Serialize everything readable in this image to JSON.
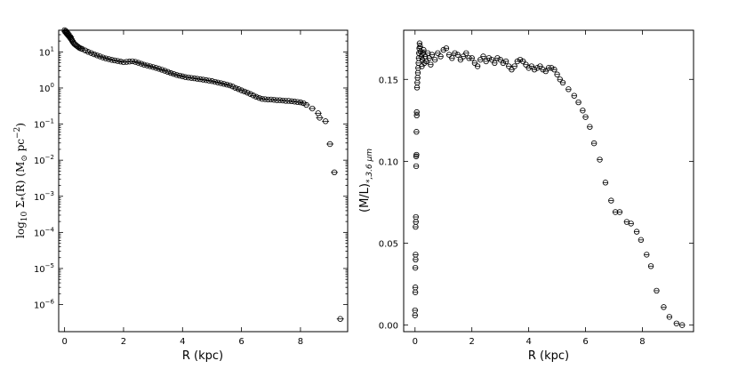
{
  "chart_data": [
    {
      "type": "scatter",
      "xlabel": "R (kpc)",
      "ylabel_parts": {
        "pre": "log",
        "sub1": "10",
        "mid": " Σ",
        "sub2": "*",
        "post": "(R) (M",
        "sun": "⊙",
        "unit": " pc",
        "exp": "−2",
        "end": ")"
      },
      "xlim": [
        -0.2,
        9.6
      ],
      "ylim_log10": [
        -6.75,
        1.6
      ],
      "log_y": true,
      "xticks": [
        0,
        2,
        4,
        6,
        8
      ],
      "yticks_exp": [
        1,
        0,
        -1,
        -2,
        -3,
        -4,
        -5,
        -6
      ],
      "ytick_labels": [
        {
          "base": "10",
          "exp": "1"
        },
        {
          "base": "10",
          "exp": "0"
        },
        {
          "base": "10",
          "exp": "−1"
        },
        {
          "base": "10",
          "exp": "−2"
        },
        {
          "base": "10",
          "exp": "−3"
        },
        {
          "base": "10",
          "exp": "−4"
        },
        {
          "base": "10",
          "exp": "−5"
        },
        {
          "base": "10",
          "exp": "−6"
        }
      ],
      "points": [
        {
          "x": 0.0,
          "y": 40
        },
        {
          "x": 0.02,
          "y": 36
        },
        {
          "x": 0.04,
          "y": 38
        },
        {
          "x": 0.06,
          "y": 33
        },
        {
          "x": 0.08,
          "y": 35
        },
        {
          "x": 0.1,
          "y": 30
        },
        {
          "x": 0.12,
          "y": 32
        },
        {
          "x": 0.14,
          "y": 28
        },
        {
          "x": 0.16,
          "y": 27
        },
        {
          "x": 0.18,
          "y": 25
        },
        {
          "x": 0.2,
          "y": 26
        },
        {
          "x": 0.22,
          "y": 23
        },
        {
          "x": 0.25,
          "y": 21
        },
        {
          "x": 0.28,
          "y": 19
        },
        {
          "x": 0.32,
          "y": 17
        },
        {
          "x": 0.36,
          "y": 16
        },
        {
          "x": 0.4,
          "y": 15
        },
        {
          "x": 0.45,
          "y": 14
        },
        {
          "x": 0.5,
          "y": 13
        },
        {
          "x": 0.55,
          "y": 12.5
        },
        {
          "x": 0.6,
          "y": 12
        },
        {
          "x": 0.7,
          "y": 11
        },
        {
          "x": 0.8,
          "y": 10
        },
        {
          "x": 0.9,
          "y": 9.3
        },
        {
          "x": 1.0,
          "y": 8.6
        },
        {
          "x": 1.1,
          "y": 8.0
        },
        {
          "x": 1.2,
          "y": 7.5
        },
        {
          "x": 1.3,
          "y": 7.0
        },
        {
          "x": 1.4,
          "y": 6.6
        },
        {
          "x": 1.5,
          "y": 6.3
        },
        {
          "x": 1.6,
          "y": 6.0
        },
        {
          "x": 1.7,
          "y": 5.8
        },
        {
          "x": 1.8,
          "y": 5.6
        },
        {
          "x": 1.9,
          "y": 5.4
        },
        {
          "x": 2.0,
          "y": 5.2
        },
        {
          "x": 2.1,
          "y": 5.3
        },
        {
          "x": 2.2,
          "y": 5.4
        },
        {
          "x": 2.3,
          "y": 5.5
        },
        {
          "x": 2.4,
          "y": 5.3
        },
        {
          "x": 2.5,
          "y": 5.0
        },
        {
          "x": 2.6,
          "y": 4.7
        },
        {
          "x": 2.7,
          "y": 4.4
        },
        {
          "x": 2.8,
          "y": 4.2
        },
        {
          "x": 2.9,
          "y": 4.0
        },
        {
          "x": 3.0,
          "y": 3.8
        },
        {
          "x": 3.1,
          "y": 3.6
        },
        {
          "x": 3.2,
          "y": 3.4
        },
        {
          "x": 3.3,
          "y": 3.2
        },
        {
          "x": 3.4,
          "y": 3.0
        },
        {
          "x": 3.5,
          "y": 2.8
        },
        {
          "x": 3.6,
          "y": 2.6
        },
        {
          "x": 3.7,
          "y": 2.45
        },
        {
          "x": 3.8,
          "y": 2.3
        },
        {
          "x": 3.9,
          "y": 2.2
        },
        {
          "x": 4.0,
          "y": 2.1
        },
        {
          "x": 4.1,
          "y": 2.0
        },
        {
          "x": 4.2,
          "y": 1.95
        },
        {
          "x": 4.3,
          "y": 1.9
        },
        {
          "x": 4.4,
          "y": 1.85
        },
        {
          "x": 4.5,
          "y": 1.8
        },
        {
          "x": 4.6,
          "y": 1.75
        },
        {
          "x": 4.7,
          "y": 1.7
        },
        {
          "x": 4.8,
          "y": 1.65
        },
        {
          "x": 4.9,
          "y": 1.6
        },
        {
          "x": 5.0,
          "y": 1.55
        },
        {
          "x": 5.1,
          "y": 1.48
        },
        {
          "x": 5.2,
          "y": 1.42
        },
        {
          "x": 5.3,
          "y": 1.36
        },
        {
          "x": 5.4,
          "y": 1.3
        },
        {
          "x": 5.5,
          "y": 1.24
        },
        {
          "x": 5.6,
          "y": 1.18
        },
        {
          "x": 5.7,
          "y": 1.1
        },
        {
          "x": 5.8,
          "y": 1.0
        },
        {
          "x": 5.9,
          "y": 0.93
        },
        {
          "x": 6.0,
          "y": 0.86
        },
        {
          "x": 6.1,
          "y": 0.8
        },
        {
          "x": 6.2,
          "y": 0.74
        },
        {
          "x": 6.3,
          "y": 0.68
        },
        {
          "x": 6.4,
          "y": 0.62
        },
        {
          "x": 6.5,
          "y": 0.57
        },
        {
          "x": 6.6,
          "y": 0.53
        },
        {
          "x": 6.7,
          "y": 0.5
        },
        {
          "x": 6.8,
          "y": 0.49
        },
        {
          "x": 6.9,
          "y": 0.48
        },
        {
          "x": 7.0,
          "y": 0.48
        },
        {
          "x": 7.1,
          "y": 0.47
        },
        {
          "x": 7.2,
          "y": 0.46
        },
        {
          "x": 7.3,
          "y": 0.46
        },
        {
          "x": 7.4,
          "y": 0.45
        },
        {
          "x": 7.5,
          "y": 0.44
        },
        {
          "x": 7.6,
          "y": 0.44
        },
        {
          "x": 7.7,
          "y": 0.43
        },
        {
          "x": 7.8,
          "y": 0.42
        },
        {
          "x": 7.9,
          "y": 0.41
        },
        {
          "x": 8.0,
          "y": 0.4
        },
        {
          "x": 8.1,
          "y": 0.38
        },
        {
          "x": 8.2,
          "y": 0.34
        },
        {
          "x": 8.4,
          "y": 0.27
        },
        {
          "x": 8.6,
          "y": 0.2
        },
        {
          "x": 8.65,
          "y": 0.15
        },
        {
          "x": 8.85,
          "y": 0.12
        },
        {
          "x": 9.0,
          "y": 0.028
        },
        {
          "x": 9.15,
          "y": 0.0046
        },
        {
          "x": 9.35,
          "y": 4e-07
        }
      ],
      "xerr": 0.12
    },
    {
      "type": "scatter",
      "xlabel": "R (kpc)",
      "ylabel_parts": {
        "pre": "(M/L)",
        "sub": "*,3.6 μm"
      },
      "xlim": [
        -0.4,
        9.8
      ],
      "ylim": [
        -0.004,
        0.18
      ],
      "xticks": [
        0,
        2,
        4,
        6,
        8
      ],
      "yticks": [
        0.0,
        0.05,
        0.1,
        0.15
      ],
      "ytick_labels": [
        "0.00",
        "0.05",
        "0.10",
        "0.15"
      ],
      "points": [
        {
          "x": 0.0,
          "y": 0.006
        },
        {
          "x": 0.0,
          "y": 0.009
        },
        {
          "x": 0.01,
          "y": 0.02
        },
        {
          "x": 0.01,
          "y": 0.023
        },
        {
          "x": 0.01,
          "y": 0.035
        },
        {
          "x": 0.02,
          "y": 0.04
        },
        {
          "x": 0.02,
          "y": 0.043
        },
        {
          "x": 0.02,
          "y": 0.06
        },
        {
          "x": 0.03,
          "y": 0.063
        },
        {
          "x": 0.03,
          "y": 0.066
        },
        {
          "x": 0.04,
          "y": 0.097
        },
        {
          "x": 0.04,
          "y": 0.103
        },
        {
          "x": 0.05,
          "y": 0.104
        },
        {
          "x": 0.05,
          "y": 0.118
        },
        {
          "x": 0.06,
          "y": 0.128
        },
        {
          "x": 0.06,
          "y": 0.13
        },
        {
          "x": 0.07,
          "y": 0.145
        },
        {
          "x": 0.08,
          "y": 0.148
        },
        {
          "x": 0.09,
          "y": 0.151
        },
        {
          "x": 0.1,
          "y": 0.154
        },
        {
          "x": 0.11,
          "y": 0.157
        },
        {
          "x": 0.12,
          "y": 0.16
        },
        {
          "x": 0.13,
          "y": 0.163
        },
        {
          "x": 0.14,
          "y": 0.166
        },
        {
          "x": 0.15,
          "y": 0.169
        },
        {
          "x": 0.16,
          "y": 0.172
        },
        {
          "x": 0.18,
          "y": 0.17
        },
        {
          "x": 0.2,
          "y": 0.167
        },
        {
          "x": 0.22,
          "y": 0.164
        },
        {
          "x": 0.24,
          "y": 0.158
        },
        {
          "x": 0.26,
          "y": 0.162
        },
        {
          "x": 0.28,
          "y": 0.166
        },
        {
          "x": 0.3,
          "y": 0.168
        },
        {
          "x": 0.33,
          "y": 0.16
        },
        {
          "x": 0.36,
          "y": 0.164
        },
        {
          "x": 0.4,
          "y": 0.161
        },
        {
          "x": 0.45,
          "y": 0.166
        },
        {
          "x": 0.5,
          "y": 0.163
        },
        {
          "x": 0.55,
          "y": 0.159
        },
        {
          "x": 0.6,
          "y": 0.165
        },
        {
          "x": 0.7,
          "y": 0.162
        },
        {
          "x": 0.8,
          "y": 0.166
        },
        {
          "x": 0.9,
          "y": 0.164
        },
        {
          "x": 1.0,
          "y": 0.168
        },
        {
          "x": 1.1,
          "y": 0.169
        },
        {
          "x": 1.2,
          "y": 0.165
        },
        {
          "x": 1.3,
          "y": 0.163
        },
        {
          "x": 1.4,
          "y": 0.166
        },
        {
          "x": 1.5,
          "y": 0.165
        },
        {
          "x": 1.6,
          "y": 0.162
        },
        {
          "x": 1.7,
          "y": 0.164
        },
        {
          "x": 1.8,
          "y": 0.166
        },
        {
          "x": 1.9,
          "y": 0.163
        },
        {
          "x": 2.0,
          "y": 0.163
        },
        {
          "x": 2.1,
          "y": 0.16
        },
        {
          "x": 2.2,
          "y": 0.158
        },
        {
          "x": 2.3,
          "y": 0.162
        },
        {
          "x": 2.4,
          "y": 0.164
        },
        {
          "x": 2.5,
          "y": 0.161
        },
        {
          "x": 2.6,
          "y": 0.163
        },
        {
          "x": 2.7,
          "y": 0.162
        },
        {
          "x": 2.8,
          "y": 0.16
        },
        {
          "x": 2.9,
          "y": 0.163
        },
        {
          "x": 3.0,
          "y": 0.162
        },
        {
          "x": 3.1,
          "y": 0.16
        },
        {
          "x": 3.2,
          "y": 0.161
        },
        {
          "x": 3.3,
          "y": 0.158
        },
        {
          "x": 3.4,
          "y": 0.156
        },
        {
          "x": 3.5,
          "y": 0.158
        },
        {
          "x": 3.6,
          "y": 0.161
        },
        {
          "x": 3.7,
          "y": 0.162
        },
        {
          "x": 3.8,
          "y": 0.161
        },
        {
          "x": 3.9,
          "y": 0.159
        },
        {
          "x": 4.0,
          "y": 0.157
        },
        {
          "x": 4.1,
          "y": 0.158
        },
        {
          "x": 4.2,
          "y": 0.156
        },
        {
          "x": 4.3,
          "y": 0.157
        },
        {
          "x": 4.4,
          "y": 0.158
        },
        {
          "x": 4.5,
          "y": 0.156
        },
        {
          "x": 4.6,
          "y": 0.155
        },
        {
          "x": 4.7,
          "y": 0.157
        },
        {
          "x": 4.8,
          "y": 0.157
        },
        {
          "x": 4.9,
          "y": 0.156
        },
        {
          "x": 5.0,
          "y": 0.153
        },
        {
          "x": 5.1,
          "y": 0.15
        },
        {
          "x": 5.2,
          "y": 0.148
        },
        {
          "x": 5.4,
          "y": 0.144
        },
        {
          "x": 5.6,
          "y": 0.14
        },
        {
          "x": 5.75,
          "y": 0.136
        },
        {
          "x": 5.9,
          "y": 0.131
        },
        {
          "x": 6.0,
          "y": 0.127
        },
        {
          "x": 6.15,
          "y": 0.121
        },
        {
          "x": 6.3,
          "y": 0.111
        },
        {
          "x": 6.5,
          "y": 0.101
        },
        {
          "x": 6.7,
          "y": 0.087
        },
        {
          "x": 6.9,
          "y": 0.076
        },
        {
          "x": 7.05,
          "y": 0.069
        },
        {
          "x": 7.2,
          "y": 0.069
        },
        {
          "x": 7.45,
          "y": 0.063
        },
        {
          "x": 7.6,
          "y": 0.062
        },
        {
          "x": 7.8,
          "y": 0.057
        },
        {
          "x": 7.95,
          "y": 0.052
        },
        {
          "x": 8.15,
          "y": 0.043
        },
        {
          "x": 8.3,
          "y": 0.036
        },
        {
          "x": 8.5,
          "y": 0.021
        },
        {
          "x": 8.75,
          "y": 0.011
        },
        {
          "x": 8.95,
          "y": 0.005
        },
        {
          "x": 9.2,
          "y": 0.001
        },
        {
          "x": 9.4,
          "y": 0.0
        }
      ],
      "xerr": 0.08
    }
  ]
}
